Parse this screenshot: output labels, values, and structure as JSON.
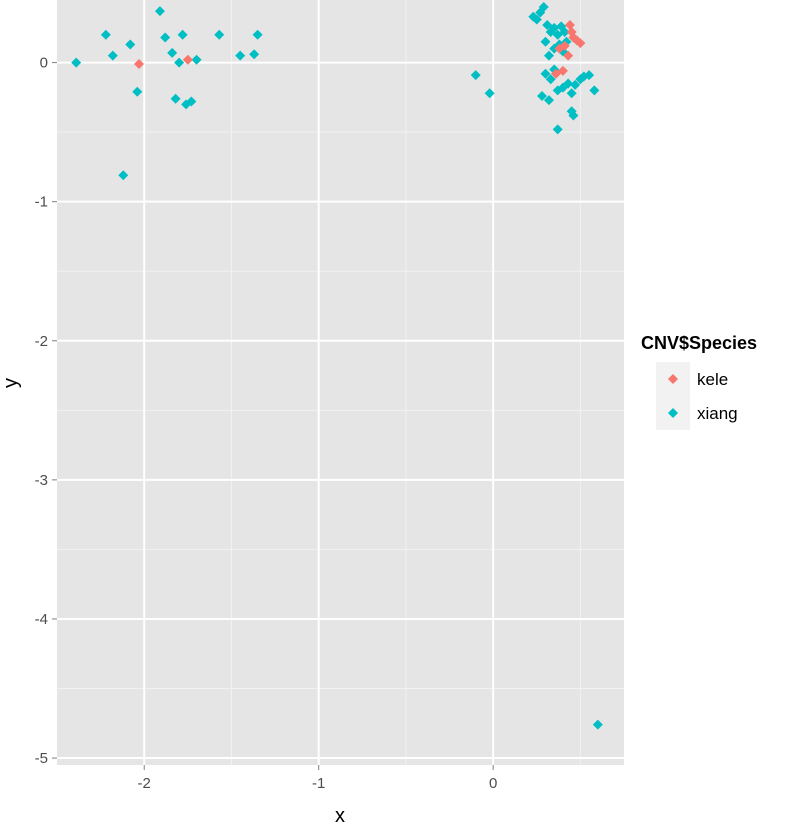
{
  "chart_data": {
    "type": "scatter",
    "title": "",
    "xlabel": "x",
    "ylabel": "y",
    "xlim": [
      -2.5,
      0.75
    ],
    "ylim": [
      -5.05,
      0.45
    ],
    "x_ticks": [
      -2,
      -1,
      0
    ],
    "y_ticks": [
      0,
      -1,
      -2,
      -3,
      -4,
      -5
    ],
    "grid": true,
    "panel_background": "#e5e5e5",
    "legend_position": "right",
    "legend": {
      "title": "CNV$Species"
    },
    "series": [
      {
        "name": "kele",
        "color": "#f8766d",
        "points": [
          [
            -2.03,
            -0.01
          ],
          [
            -1.75,
            0.02
          ],
          [
            0.36,
            -0.08
          ],
          [
            0.4,
            -0.06
          ],
          [
            0.44,
            0.27
          ],
          [
            0.46,
            0.18
          ],
          [
            0.48,
            0.16
          ],
          [
            0.5,
            0.14
          ],
          [
            0.41,
            0.12
          ],
          [
            0.45,
            0.22
          ],
          [
            0.38,
            0.1
          ],
          [
            0.43,
            0.05
          ]
        ]
      },
      {
        "name": "xiang",
        "color": "#00bfc4",
        "points": [
          [
            -2.39,
            0.0
          ],
          [
            -2.22,
            0.2
          ],
          [
            -2.18,
            0.05
          ],
          [
            -2.08,
            0.13
          ],
          [
            -2.04,
            -0.21
          ],
          [
            -2.12,
            -0.81
          ],
          [
            -1.91,
            0.37
          ],
          [
            -1.88,
            0.18
          ],
          [
            -1.84,
            0.07
          ],
          [
            -1.78,
            0.2
          ],
          [
            -1.8,
            0.0
          ],
          [
            -1.82,
            -0.26
          ],
          [
            -1.76,
            -0.3
          ],
          [
            -1.73,
            -0.28
          ],
          [
            -1.7,
            0.02
          ],
          [
            -1.57,
            0.2
          ],
          [
            -1.45,
            0.05
          ],
          [
            -1.37,
            0.06
          ],
          [
            -1.35,
            0.2
          ],
          [
            -0.1,
            -0.09
          ],
          [
            -0.02,
            -0.22
          ],
          [
            0.23,
            0.33
          ],
          [
            0.25,
            0.31
          ],
          [
            0.27,
            0.36
          ],
          [
            0.29,
            0.4
          ],
          [
            0.31,
            0.27
          ],
          [
            0.33,
            0.22
          ],
          [
            0.35,
            0.25
          ],
          [
            0.37,
            0.2
          ],
          [
            0.39,
            0.26
          ],
          [
            0.41,
            0.22
          ],
          [
            0.3,
            0.15
          ],
          [
            0.32,
            0.05
          ],
          [
            0.35,
            0.1
          ],
          [
            0.38,
            0.13
          ],
          [
            0.4,
            0.08
          ],
          [
            0.42,
            0.15
          ],
          [
            0.3,
            -0.08
          ],
          [
            0.33,
            -0.12
          ],
          [
            0.35,
            -0.05
          ],
          [
            0.37,
            -0.2
          ],
          [
            0.4,
            -0.18
          ],
          [
            0.43,
            -0.15
          ],
          [
            0.45,
            -0.22
          ],
          [
            0.47,
            -0.16
          ],
          [
            0.5,
            -0.12
          ],
          [
            0.52,
            -0.1
          ],
          [
            0.55,
            -0.09
          ],
          [
            0.58,
            -0.2
          ],
          [
            0.28,
            -0.24
          ],
          [
            0.32,
            -0.27
          ],
          [
            0.45,
            -0.35
          ],
          [
            0.46,
            -0.38
          ],
          [
            0.37,
            -0.48
          ],
          [
            0.6,
            -4.76
          ]
        ]
      }
    ]
  }
}
